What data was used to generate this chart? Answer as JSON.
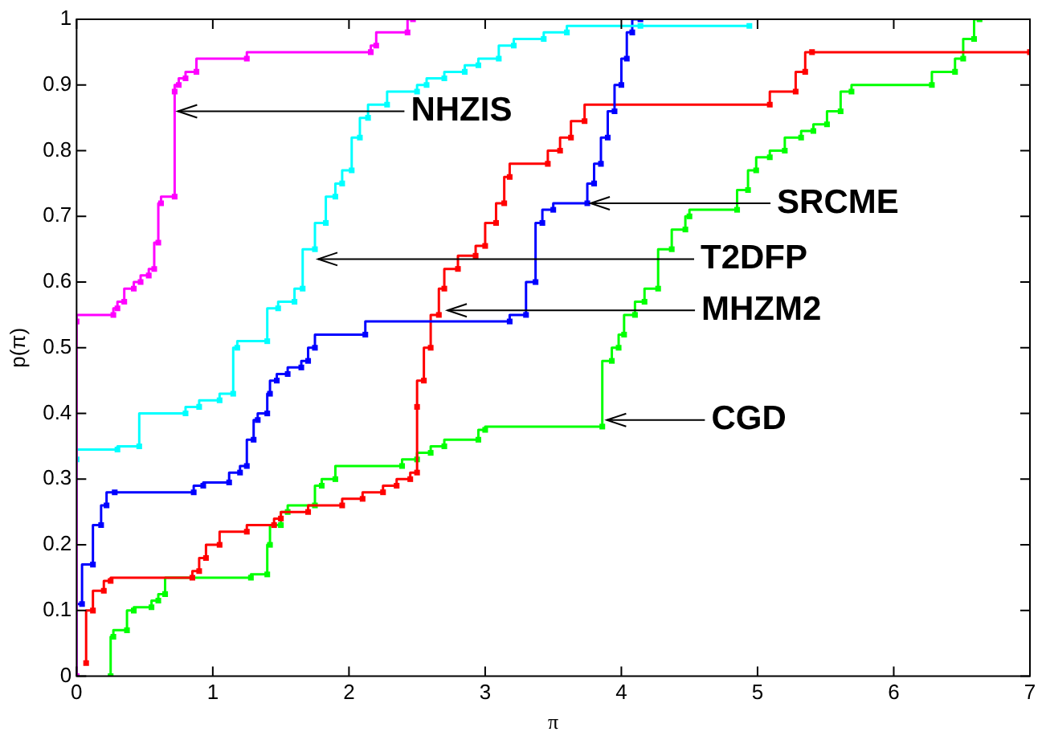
{
  "chart_data": {
    "type": "step",
    "xlabel": "π",
    "ylabel": "p(π)",
    "xlim": [
      0,
      7
    ],
    "ylim": [
      0,
      1
    ],
    "xticks": [
      0,
      1,
      2,
      3,
      4,
      5,
      6,
      7
    ],
    "yticks": [
      0,
      0.1,
      0.2,
      0.3,
      0.4,
      0.5,
      0.6,
      0.7,
      0.8,
      0.9,
      1
    ],
    "grid": false,
    "legend": false,
    "marker": "square",
    "line_style": "solid",
    "series": [
      {
        "color": "#ff00ff",
        "x": [
          0,
          0,
          0.27,
          0.3,
          0.35,
          0.42,
          0.47,
          0.53,
          0.57,
          0.6,
          0.62,
          0.72,
          0.72,
          0.75,
          0.8,
          0.88,
          1.25,
          2.16,
          2.2,
          2.43,
          2.47
        ],
        "values": [
          0,
          0.54,
          0.55,
          0.56,
          0.57,
          0.59,
          0.6,
          0.61,
          0.62,
          0.66,
          0.72,
          0.73,
          0.89,
          0.9,
          0.91,
          0.92,
          0.94,
          0.95,
          0.96,
          0.98,
          1
        ]
      },
      {
        "color": "#00ffff",
        "x": [
          0,
          0,
          0.3,
          0.46,
          0.8,
          0.9,
          1.05,
          1.15,
          1.18,
          1.4,
          1.48,
          1.6,
          1.66,
          1.75,
          1.83,
          1.9,
          1.95,
          2.02,
          2.08,
          2.14,
          2.28,
          2.5,
          2.57,
          2.7,
          2.85,
          2.95,
          3.1,
          3.21,
          3.43,
          3.6,
          4.14,
          4.94
        ],
        "values": [
          0,
          0.33,
          0.345,
          0.35,
          0.4,
          0.41,
          0.42,
          0.43,
          0.5,
          0.51,
          0.56,
          0.57,
          0.59,
          0.65,
          0.69,
          0.73,
          0.75,
          0.77,
          0.82,
          0.85,
          0.87,
          0.89,
          0.9,
          0.91,
          0.92,
          0.93,
          0.94,
          0.96,
          0.97,
          0.98,
          0.99,
          0.99
        ]
      },
      {
        "color": "#0000ff",
        "x": [
          0,
          0.04,
          0.12,
          0.18,
          0.22,
          0.28,
          0.86,
          0.93,
          1.12,
          1.2,
          1.25,
          1.3,
          1.33,
          1.4,
          1.42,
          1.47,
          1.55,
          1.65,
          1.7,
          1.75,
          2.12,
          3.18,
          3.3,
          3.37,
          3.42,
          3.5,
          3.75,
          3.8,
          3.85,
          3.9,
          3.95,
          4.0,
          4.04,
          4.08,
          4.14
        ],
        "values": [
          0,
          0.11,
          0.17,
          0.23,
          0.26,
          0.28,
          0.28,
          0.29,
          0.295,
          0.31,
          0.32,
          0.36,
          0.39,
          0.4,
          0.43,
          0.45,
          0.46,
          0.47,
          0.48,
          0.5,
          0.52,
          0.54,
          0.55,
          0.6,
          0.69,
          0.71,
          0.72,
          0.75,
          0.78,
          0.82,
          0.86,
          0.9,
          0.94,
          0.98,
          1
        ]
      },
      {
        "color": "#ff0000",
        "x": [
          0.07,
          0.12,
          0.2,
          0.25,
          0.85,
          0.9,
          0.95,
          1.05,
          1.25,
          1.45,
          1.5,
          1.7,
          1.95,
          2.1,
          2.25,
          2.35,
          2.45,
          2.5,
          2.5,
          2.55,
          2.6,
          2.66,
          2.7,
          2.8,
          2.93,
          3.0,
          3.08,
          3.14,
          3.18,
          3.46,
          3.55,
          3.63,
          3.73,
          5.09,
          5.28,
          5.35,
          5.4,
          7
        ],
        "values": [
          0.02,
          0.1,
          0.13,
          0.145,
          0.15,
          0.16,
          0.18,
          0.2,
          0.22,
          0.23,
          0.24,
          0.25,
          0.26,
          0.27,
          0.28,
          0.29,
          0.3,
          0.31,
          0.41,
          0.45,
          0.5,
          0.55,
          0.59,
          0.62,
          0.64,
          0.655,
          0.69,
          0.72,
          0.76,
          0.78,
          0.8,
          0.82,
          0.845,
          0.87,
          0.89,
          0.92,
          0.95,
          0.95
        ]
      },
      {
        "color": "#00ff00",
        "x": [
          0.25,
          0.27,
          0.37,
          0.42,
          0.55,
          0.6,
          0.65,
          1.28,
          1.4,
          1.42,
          1.5,
          1.55,
          1.75,
          1.8,
          1.9,
          2.39,
          2.5,
          2.6,
          2.7,
          2.95,
          3.0,
          3.86,
          3.93,
          3.98,
          4.02,
          4.1,
          4.17,
          4.27,
          4.37,
          4.47,
          4.5,
          4.85,
          4.93,
          4.99,
          5.09,
          5.2,
          5.32,
          5.41,
          5.51,
          5.61,
          5.69,
          6.28,
          6.45,
          6.51,
          6.59,
          6.63
        ],
        "values": [
          0,
          0.06,
          0.07,
          0.1,
          0.105,
          0.115,
          0.125,
          0.15,
          0.155,
          0.2,
          0.23,
          0.25,
          0.26,
          0.29,
          0.3,
          0.32,
          0.33,
          0.34,
          0.35,
          0.36,
          0.375,
          0.38,
          0.48,
          0.5,
          0.52,
          0.55,
          0.57,
          0.59,
          0.65,
          0.68,
          0.7,
          0.71,
          0.74,
          0.77,
          0.79,
          0.8,
          0.82,
          0.83,
          0.84,
          0.86,
          0.89,
          0.9,
          0.92,
          0.94,
          0.97,
          1
        ]
      }
    ],
    "annotations": [
      {
        "text": "NHZIS",
        "x": 0.72,
        "y": 0.86
      },
      {
        "text": "T2DFP",
        "x": 1.75,
        "y": 0.635
      },
      {
        "text": "MHZM2",
        "x": 2.7,
        "y": 0.557
      },
      {
        "text": "SRCME",
        "x": 3.75,
        "y": 0.72
      },
      {
        "text": "CGD",
        "x": 3.87,
        "y": 0.39
      }
    ]
  }
}
